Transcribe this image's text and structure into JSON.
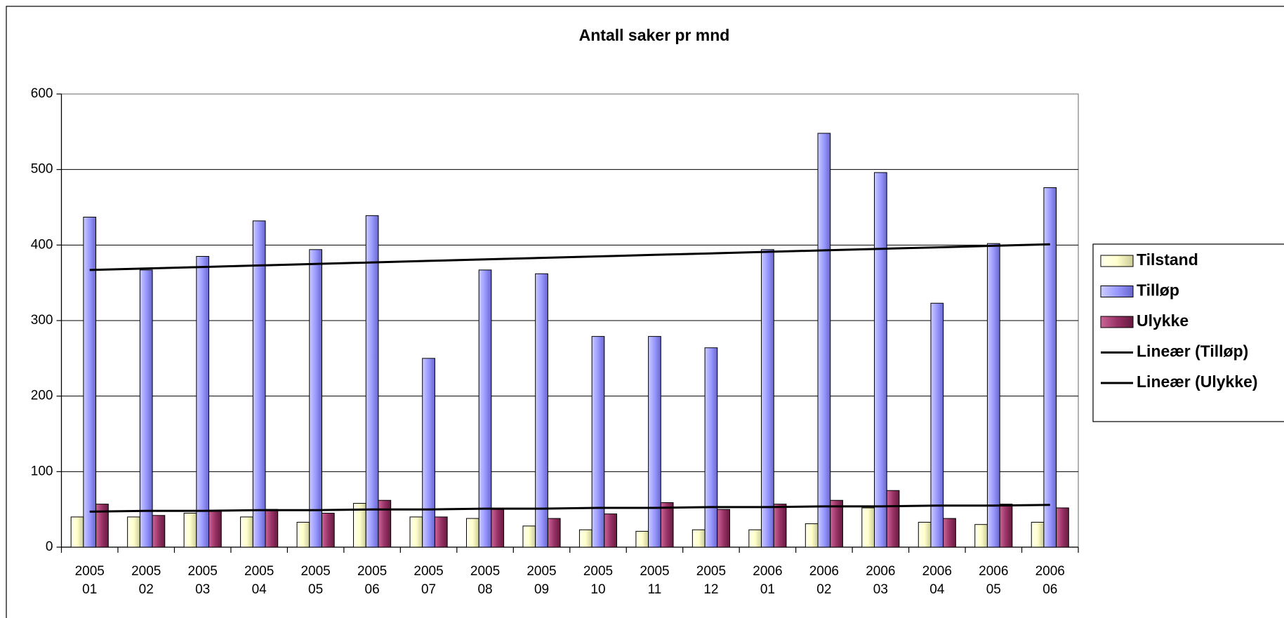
{
  "chart_data": {
    "type": "bar",
    "title": "Antall saker pr mnd",
    "categories": [
      [
        "2005",
        "01"
      ],
      [
        "2005",
        "02"
      ],
      [
        "2005",
        "03"
      ],
      [
        "2005",
        "04"
      ],
      [
        "2005",
        "05"
      ],
      [
        "2005",
        "06"
      ],
      [
        "2005",
        "07"
      ],
      [
        "2005",
        "08"
      ],
      [
        "2005",
        "09"
      ],
      [
        "2005",
        "10"
      ],
      [
        "2005",
        "11"
      ],
      [
        "2005",
        "12"
      ],
      [
        "2006",
        "01"
      ],
      [
        "2006",
        "02"
      ],
      [
        "2006",
        "03"
      ],
      [
        "2006",
        "04"
      ],
      [
        "2006",
        "05"
      ],
      [
        "2006",
        "06"
      ]
    ],
    "series": [
      {
        "name": "Tilstand",
        "type": "bar",
        "color": "#ffffcc",
        "values": [
          40,
          40,
          45,
          40,
          33,
          58,
          40,
          38,
          28,
          23,
          21,
          23,
          23,
          31,
          52,
          33,
          30,
          33
        ]
      },
      {
        "name": "Tilløp",
        "type": "bar",
        "color": "#9999ff",
        "values": [
          437,
          367,
          385,
          432,
          394,
          439,
          250,
          367,
          362,
          279,
          279,
          264,
          394,
          548,
          496,
          323,
          402,
          476
        ]
      },
      {
        "name": "Ulykke",
        "type": "bar",
        "color": "#993366",
        "values": [
          57,
          42,
          48,
          50,
          45,
          62,
          40,
          50,
          38,
          44,
          59,
          50,
          57,
          62,
          75,
          38,
          57,
          52
        ]
      },
      {
        "name": "Lineær (Tilløp)",
        "type": "line",
        "color": "#000000",
        "values": [
          367,
          369,
          371,
          373,
          375,
          377,
          379,
          381,
          383,
          385,
          387,
          389,
          391,
          393,
          395,
          397,
          399,
          401
        ]
      },
      {
        "name": "Lineær (Ulykke)",
        "type": "line",
        "color": "#000000",
        "values": [
          47,
          48,
          48,
          49,
          49,
          50,
          50,
          51,
          51,
          52,
          52,
          53,
          53,
          54,
          54,
          55,
          55,
          56
        ]
      }
    ],
    "ylim": [
      0,
      600
    ],
    "yticks": [
      0,
      100,
      200,
      300,
      400,
      500,
      600
    ],
    "grid": true,
    "legend": "right"
  }
}
